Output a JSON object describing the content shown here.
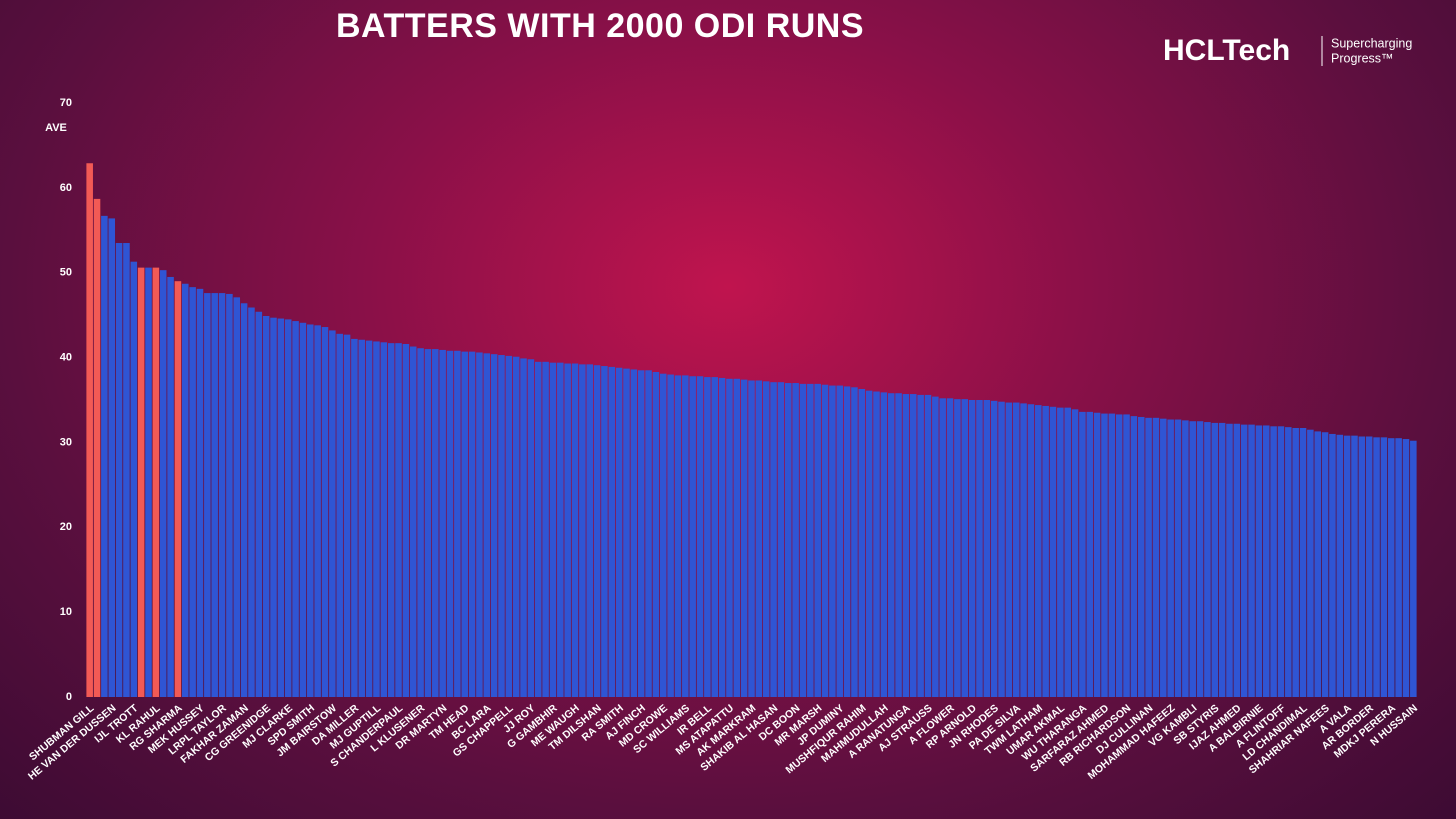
{
  "logo": {
    "name": "HCLTech",
    "tagline": [
      "Supercharging",
      "Progress™"
    ]
  },
  "chart_data": {
    "type": "bar",
    "title": "BATTERS WITH 2000 ODI RUNS",
    "y_label": "AVE",
    "ylim": [
      0,
      70
    ],
    "yticks": [
      0,
      10,
      20,
      30,
      40,
      50,
      60,
      70
    ],
    "grid": false,
    "categories": [
      "SHUBMAN GILL",
      null,
      null,
      "HE VAN DER DUSSEN",
      null,
      null,
      "IJL TROTT",
      null,
      null,
      "KL RAHUL",
      null,
      null,
      "RG SHARMA",
      null,
      null,
      "MEK HUSSEY",
      null,
      null,
      "LRPL TAYLOR",
      null,
      null,
      "FAKHAR ZAMAN",
      null,
      null,
      "CG GREENIDGE",
      null,
      null,
      "MJ CLARKE",
      null,
      null,
      "SPD SMITH",
      null,
      null,
      "JM BAIRSTOW",
      null,
      null,
      "DA MILLER",
      null,
      null,
      "MJ GUPTILL",
      null,
      null,
      "S CHANDERPAUL",
      null,
      null,
      "L KLUSENER",
      null,
      null,
      "DR MARTYN",
      null,
      null,
      "TM HEAD",
      null,
      null,
      "BC LARA",
      null,
      null,
      "GS CHAPPELL",
      null,
      null,
      "JJ ROY",
      null,
      null,
      "G GAMBHIR",
      null,
      null,
      "ME WAUGH",
      null,
      null,
      "TM DILSHAN",
      null,
      null,
      "RA SMITH",
      null,
      null,
      "AJ FINCH",
      null,
      null,
      "MD CROWE",
      null,
      null,
      "SC WILLIAMS",
      null,
      null,
      "IR BELL",
      null,
      null,
      "MS ATAPATTU",
      null,
      null,
      "AK MARKRAM",
      null,
      null,
      "SHAKIB AL HASAN",
      null,
      null,
      "DC BOON",
      null,
      null,
      "MR MARSH",
      null,
      null,
      "JP DUMINY",
      null,
      null,
      "MUSHFIQUR RAHIM",
      null,
      null,
      "MAHMUDULLAH",
      null,
      null,
      "A RANATUNGA",
      null,
      null,
      "AJ STRAUSS",
      null,
      null,
      "A FLOWER",
      null,
      null,
      "RP ARNOLD",
      null,
      null,
      "JN RHODES",
      null,
      null,
      "PA DE SILVA",
      null,
      null,
      "TWM LATHAM",
      null,
      null,
      "UMAR AKMAL",
      null,
      null,
      "WU THARANGA",
      null,
      null,
      "SARFARAZ AHMED",
      null,
      null,
      "RB RICHARDSON",
      null,
      null,
      "DJ CULLINAN",
      null,
      null,
      "MOHAMMAD HAFEEZ",
      null,
      null,
      "VG KAMBLI",
      null,
      null,
      "SB STYRIS",
      null,
      null,
      "IJAZ AHMED",
      null,
      null,
      "A BALBIRNIE",
      null,
      null,
      "A FLINTOFF",
      null,
      null,
      "LD CHANDIMAL",
      null,
      null,
      "SHAHRIAR NAFEES",
      null,
      null,
      "A VALA",
      null,
      null,
      "AR BORDER",
      null,
      null,
      "MDKJ PERERA",
      null,
      null,
      "N HUSSAIN"
    ],
    "values": [
      62.9,
      58.7,
      56.7,
      56.4,
      53.5,
      53.5,
      51.3,
      50.6,
      50.6,
      50.6,
      50.3,
      49.5,
      49.0,
      48.7,
      48.3,
      48.1,
      47.6,
      47.6,
      47.6,
      47.5,
      47.1,
      46.4,
      45.9,
      45.4,
      44.9,
      44.7,
      44.6,
      44.5,
      44.3,
      44.1,
      43.9,
      43.8,
      43.6,
      43.2,
      42.8,
      42.7,
      42.2,
      42.1,
      42.0,
      41.9,
      41.8,
      41.7,
      41.7,
      41.6,
      41.3,
      41.1,
      41.0,
      41.0,
      40.9,
      40.8,
      40.8,
      40.7,
      40.7,
      40.6,
      40.5,
      40.4,
      40.3,
      40.2,
      40.1,
      39.9,
      39.8,
      39.5,
      39.5,
      39.4,
      39.4,
      39.3,
      39.3,
      39.2,
      39.2,
      39.1,
      39.0,
      38.9,
      38.8,
      38.7,
      38.6,
      38.5,
      38.5,
      38.3,
      38.1,
      38.0,
      37.9,
      37.9,
      37.8,
      37.8,
      37.7,
      37.7,
      37.6,
      37.5,
      37.5,
      37.4,
      37.3,
      37.3,
      37.2,
      37.1,
      37.1,
      37.0,
      37.0,
      36.9,
      36.9,
      36.9,
      36.8,
      36.7,
      36.7,
      36.6,
      36.5,
      36.3,
      36.1,
      36.0,
      35.9,
      35.8,
      35.8,
      35.7,
      35.7,
      35.6,
      35.6,
      35.4,
      35.2,
      35.2,
      35.1,
      35.1,
      35.0,
      35.0,
      35.0,
      34.9,
      34.8,
      34.7,
      34.7,
      34.6,
      34.5,
      34.4,
      34.3,
      34.2,
      34.1,
      34.1,
      33.9,
      33.6,
      33.6,
      33.5,
      33.4,
      33.4,
      33.3,
      33.3,
      33.1,
      33.0,
      32.9,
      32.9,
      32.8,
      32.7,
      32.7,
      32.6,
      32.5,
      32.5,
      32.4,
      32.3,
      32.3,
      32.2,
      32.2,
      32.1,
      32.1,
      32.0,
      32.0,
      31.9,
      31.9,
      31.8,
      31.7,
      31.7,
      31.5,
      31.3,
      31.2,
      31.0,
      30.9,
      30.8,
      30.8,
      30.7,
      30.7,
      30.6,
      30.6,
      30.5,
      30.5,
      30.4,
      30.2
    ],
    "colors": [
      "#f25a55",
      "#f25a55",
      "#2f55d4",
      "#2f55d4",
      "#2f55d4",
      "#2f55d4",
      "#2f55d4",
      "#f25a55",
      "#2f55d4",
      "#f25a55",
      "#2f55d4",
      "#2f55d4",
      "#f25a55",
      "#2f55d4",
      "#2f55d4",
      "#2f55d4",
      "#2f55d4",
      "#2f55d4",
      "#2f55d4",
      "#2f55d4",
      "#2f55d4",
      "#2f55d4",
      "#2f55d4",
      "#2f55d4",
      "#2f55d4",
      "#2f55d4",
      "#2f55d4",
      "#2f55d4",
      "#2f55d4",
      "#2f55d4",
      "#2f55d4",
      "#2f55d4",
      "#2f55d4",
      "#2f55d4",
      "#2f55d4",
      "#2f55d4",
      "#2f55d4",
      "#2f55d4",
      "#2f55d4",
      "#2f55d4",
      "#2f55d4",
      "#2f55d4",
      "#2f55d4",
      "#2f55d4",
      "#2f55d4",
      "#2f55d4",
      "#2f55d4",
      "#2f55d4",
      "#2f55d4",
      "#2f55d4",
      "#2f55d4",
      "#2f55d4",
      "#2f55d4",
      "#2f55d4",
      "#2f55d4",
      "#2f55d4",
      "#2f55d4",
      "#2f55d4",
      "#2f55d4",
      "#2f55d4",
      "#2f55d4",
      "#2f55d4",
      "#2f55d4",
      "#2f55d4",
      "#2f55d4",
      "#2f55d4",
      "#2f55d4",
      "#2f55d4",
      "#2f55d4",
      "#2f55d4",
      "#2f55d4",
      "#2f55d4",
      "#2f55d4",
      "#2f55d4",
      "#2f55d4",
      "#2f55d4",
      "#2f55d4",
      "#2f55d4",
      "#2f55d4",
      "#2f55d4",
      "#2f55d4",
      "#2f55d4",
      "#2f55d4",
      "#2f55d4",
      "#2f55d4",
      "#2f55d4",
      "#2f55d4",
      "#2f55d4",
      "#2f55d4",
      "#2f55d4",
      "#2f55d4",
      "#2f55d4",
      "#2f55d4",
      "#2f55d4",
      "#2f55d4",
      "#2f55d4",
      "#2f55d4",
      "#2f55d4",
      "#2f55d4",
      "#2f55d4",
      "#2f55d4",
      "#2f55d4",
      "#2f55d4",
      "#2f55d4",
      "#2f55d4",
      "#2f55d4",
      "#2f55d4",
      "#2f55d4",
      "#2f55d4",
      "#2f55d4",
      "#2f55d4",
      "#2f55d4",
      "#2f55d4",
      "#2f55d4",
      "#2f55d4",
      "#2f55d4",
      "#2f55d4",
      "#2f55d4",
      "#2f55d4",
      "#2f55d4",
      "#2f55d4",
      "#2f55d4",
      "#2f55d4",
      "#2f55d4",
      "#2f55d4",
      "#2f55d4",
      "#2f55d4",
      "#2f55d4",
      "#2f55d4",
      "#2f55d4",
      "#2f55d4",
      "#2f55d4",
      "#2f55d4",
      "#2f55d4",
      "#2f55d4",
      "#2f55d4",
      "#2f55d4",
      "#2f55d4",
      "#2f55d4",
      "#2f55d4",
      "#2f55d4",
      "#2f55d4",
      "#2f55d4",
      "#2f55d4",
      "#2f55d4",
      "#2f55d4",
      "#2f55d4",
      "#2f55d4",
      "#2f55d4",
      "#2f55d4",
      "#2f55d4",
      "#2f55d4",
      "#2f55d4",
      "#2f55d4",
      "#2f55d4",
      "#2f55d4",
      "#2f55d4",
      "#2f55d4",
      "#2f55d4",
      "#2f55d4",
      "#2f55d4",
      "#2f55d4",
      "#2f55d4",
      "#2f55d4",
      "#2f55d4",
      "#2f55d4",
      "#2f55d4",
      "#2f55d4",
      "#2f55d4",
      "#2f55d4",
      "#2f55d4",
      "#2f55d4",
      "#2f55d4",
      "#2f55d4",
      "#2f55d4",
      "#2f55d4",
      "#2f55d4",
      "#2f55d4",
      "#2f55d4",
      "#2f55d4",
      "#2f55d4"
    ]
  }
}
